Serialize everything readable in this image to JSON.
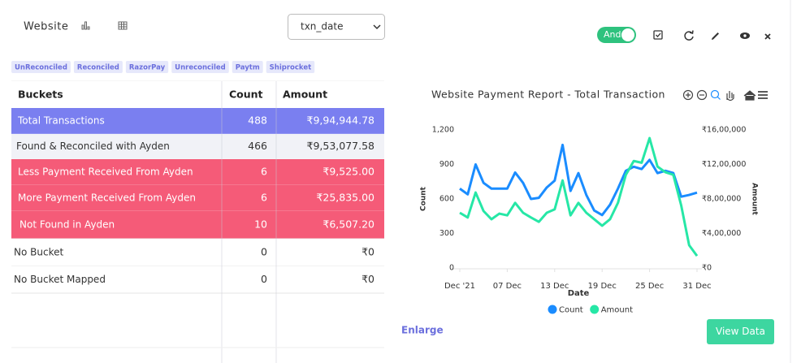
{
  "header": {
    "title": "Website",
    "select": "txn_date",
    "toggle": "And"
  },
  "tags": [
    "UnReconciled",
    "Reconciled",
    "RazorPay",
    "Unreconciled",
    "Paytm",
    "Shiprocket"
  ],
  "table": {
    "headers": [
      "Buckets",
      "Count",
      "Amount"
    ],
    "rows": [
      [
        "Total Transactions",
        "488",
        "₹9,94,944.78"
      ],
      [
        "Found & Reconciled with Ayden",
        "466",
        "₹9,53,077.58"
      ],
      [
        "Less Payment Received From Ayden",
        "6",
        "₹9,525.00"
      ],
      [
        "More Payment Received From Ayden",
        "6",
        "₹25,835.00"
      ],
      [
        "Not Found in Ayden",
        "10",
        "₹6,507.20"
      ],
      [
        "No Bucket",
        "0",
        "₹0"
      ],
      [
        "No Bucket Mapped",
        "0",
        "₹0"
      ]
    ]
  },
  "chart_data": {
    "type": "line",
    "title": "Website Payment Report - Total Transaction",
    "x_label": "Date",
    "y_label": "Count",
    "y2_label": "Amount",
    "categories": [
      "Dec '21",
      null,
      null,
      null,
      null,
      null,
      "07 Dec",
      null,
      null,
      null,
      null,
      null,
      "13 Dec",
      null,
      null,
      null,
      null,
      null,
      "19 Dec",
      null,
      null,
      null,
      null,
      null,
      "25 Dec",
      null,
      null,
      null,
      null,
      null,
      "31 Dec"
    ],
    "series": [
      {
        "name": "Count",
        "color": "#1a8cff",
        "values": [
          690,
          640,
          900,
          740,
          690,
          690,
          690,
          830,
          740,
          600,
          610,
          700,
          760,
          1070,
          670,
          825,
          635,
          500,
          460,
          550,
          690,
          845,
          880,
          860,
          940,
          825,
          845,
          825,
          620,
          635,
          655
        ]
      },
      {
        "name": "Amount",
        "color": "#26e7a6",
        "axis": "y2",
        "values": [
          640000,
          585000,
          875000,
          660000,
          565000,
          630000,
          610000,
          755000,
          640000,
          585000,
          535000,
          640000,
          680000,
          1015000,
          610000,
          755000,
          640000,
          565000,
          490000,
          565000,
          755000,
          1080000,
          1240000,
          1220000,
          1505000,
          1175000,
          1110000,
          1080000,
          725000,
          265000,
          140000
        ]
      }
    ],
    "ylim": [
      0,
      1200
    ],
    "yticks": [
      0,
      300,
      600,
      900,
      {
        "value": 1200,
        "label": "1,200"
      }
    ],
    "y2lim": [
      0,
      1600000
    ],
    "y2ticks": [
      {
        "value": 0,
        "label": "₹0"
      },
      {
        "value": 400000,
        "label": "₹4,00,000"
      },
      {
        "value": 800000,
        "label": "₹8,00,000"
      },
      {
        "value": 1200000,
        "label": "₹12,00,000"
      },
      {
        "value": 1600000,
        "label": "₹16,00,000"
      }
    ],
    "grid": false,
    "legend": "bottom"
  },
  "footer": {
    "link": "Enlarge",
    "button": "View Data"
  }
}
